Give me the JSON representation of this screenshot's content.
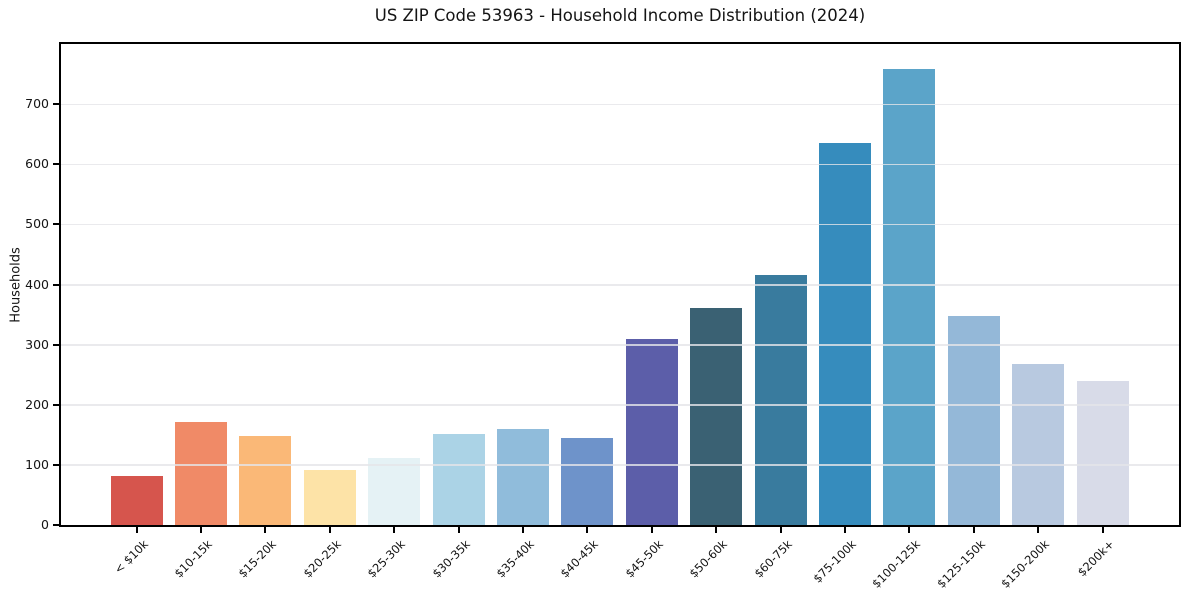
{
  "chart_data": {
    "type": "bar",
    "title": "US ZIP Code 53963 - Household Income Distribution (2024)",
    "ylabel": "Households",
    "xlabel": "",
    "categories": [
      "< $10k",
      "$10-15k",
      "$15-20k",
      "$20-25k",
      "$25-30k",
      "$30-35k",
      "$35-40k",
      "$40-45k",
      "$45-50k",
      "$50-60k",
      "$60-75k",
      "$75-100k",
      "$100-125k",
      "$125-150k",
      "$150-200k",
      "$200k+"
    ],
    "values": [
      82,
      171,
      148,
      91,
      112,
      152,
      159,
      144,
      310,
      361,
      416,
      635,
      759,
      347,
      267,
      240
    ],
    "bar_colors": [
      "#d6554d",
      "#f08a67",
      "#fab877",
      "#fde3a7",
      "#e5f2f5",
      "#abd3e6",
      "#90bcdb",
      "#6e93ca",
      "#5c5ea9",
      "#3a6173",
      "#397b9e",
      "#368cbd",
      "#5ba4c9",
      "#94b8d8",
      "#b8c9e0",
      "#d8dbe8"
    ],
    "ylim": [
      0,
      800
    ],
    "yticks": [
      0,
      100,
      200,
      300,
      400,
      500,
      600,
      700
    ],
    "grid": "horizontal",
    "gridline_color": "#eaeaec",
    "axis_color": "#000000",
    "background_color": "#ffffff",
    "legend": "none"
  }
}
